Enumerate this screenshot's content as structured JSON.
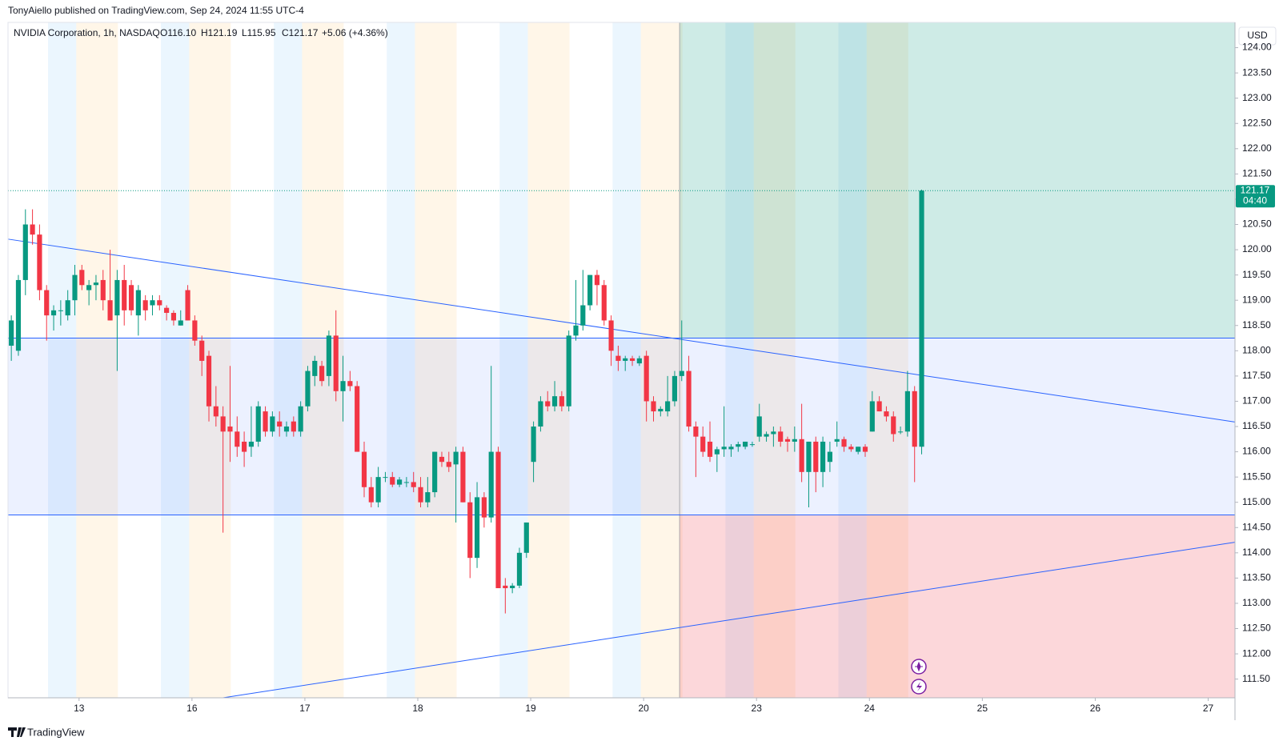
{
  "header": {
    "byline": "TonyAiello published on TradingView.com, Sep 24, 2024 11:55 UTC-4",
    "symbol": "NVIDIA Corporation, 1h, NASDAQ",
    "open": "O116.10",
    "high": "H121.19",
    "low": "L115.95",
    "close": "C121.17",
    "change": "+5.06 (+4.36%)",
    "currency": "USD"
  },
  "footer": {
    "brand": "TradingView"
  },
  "chart_data": {
    "type": "candlestick",
    "up_color": "#089981",
    "down_color": "#f23645",
    "open": [
      118.1,
      118.0,
      119.4,
      120.5,
      120.3,
      119.2,
      118.7,
      118.8,
      118.7,
      119.0,
      119.6,
      119.2,
      119.3,
      119.4,
      119.0,
      118.7,
      119.4,
      119.3,
      118.7,
      119.0,
      118.9,
      119.0,
      118.85,
      118.75,
      118.5,
      119.2,
      118.6,
      118.2,
      117.9,
      116.9,
      116.7,
      116.5,
      116.4,
      116.2,
      116.1,
      116.2,
      116.8,
      116.4,
      116.6,
      116.4,
      116.6,
      116.4,
      116.9,
      117.5,
      117.7,
      117.5,
      118.3,
      117.2,
      117.4,
      117.3,
      116.0,
      115.3,
      115.0,
      115.5,
      115.5,
      115.35,
      115.4,
      115.4,
      115.3,
      115.0,
      115.2,
      115.9,
      115.8,
      115.75,
      116.0,
      115.0,
      113.9,
      115.1,
      114.7,
      116.0,
      113.35,
      113.3,
      113.35,
      114.0,
      115.8,
      116.5,
      117.0,
      116.9,
      117.1,
      116.9,
      118.3,
      118.5,
      118.9,
      119.5,
      119.3,
      118.6,
      117.9,
      117.8,
      117.85,
      117.75,
      117.9,
      117.0,
      116.8,
      116.8,
      117.0,
      117.5,
      117.6,
      116.5,
      116.3,
      116.2,
      115.95,
      116.05,
      116.05,
      116.1,
      116.1,
      116.15,
      116.3,
      116.3,
      116.35,
      116.4,
      116.25,
      116.2,
      116.25,
      115.6,
      116.2,
      115.6,
      115.8,
      116.2,
      116.25,
      116.1,
      116.0,
      116.1,
      116.4,
      117.0,
      116.8,
      116.7,
      116.4,
      116.4,
      117.2,
      116.1
    ],
    "high": [
      118.7,
      119.5,
      120.8,
      120.8,
      120.5,
      119.3,
      118.9,
      119.0,
      119.2,
      119.7,
      119.7,
      119.4,
      119.5,
      119.6,
      120.0,
      119.6,
      119.7,
      119.4,
      119.3,
      119.1,
      119.1,
      119.1,
      118.9,
      118.8,
      118.8,
      119.3,
      118.7,
      118.3,
      118.0,
      117.3,
      116.9,
      117.7,
      116.7,
      116.4,
      116.9,
      117.0,
      116.9,
      116.8,
      116.8,
      116.6,
      116.7,
      117.0,
      117.7,
      117.9,
      117.8,
      118.4,
      118.8,
      117.9,
      117.6,
      117.4,
      116.2,
      115.5,
      115.7,
      115.6,
      115.6,
      115.5,
      115.5,
      115.6,
      115.5,
      115.5,
      116.0,
      116.0,
      116.0,
      116.1,
      116.1,
      115.2,
      115.4,
      115.2,
      117.7,
      116.1,
      113.5,
      113.4,
      114.1,
      114.6,
      116.6,
      117.1,
      117.2,
      117.4,
      117.2,
      118.4,
      119.4,
      119.6,
      119.5,
      119.6,
      119.4,
      118.7,
      118.1,
      117.9,
      117.9,
      117.9,
      118.0,
      117.1,
      116.9,
      117.5,
      117.6,
      118.6,
      117.9,
      116.6,
      116.5,
      116.6,
      116.1,
      116.9,
      116.15,
      116.2,
      116.2,
      116.2,
      116.95,
      116.4,
      116.5,
      116.5,
      116.3,
      116.5,
      116.95,
      116.2,
      116.3,
      116.3,
      116.2,
      116.6,
      116.3,
      116.15,
      116.1,
      116.15,
      117.2,
      117.1,
      116.9,
      116.8,
      116.5,
      117.6,
      117.3,
      121.19
    ],
    "low": [
      117.8,
      117.9,
      119.1,
      120.1,
      119.0,
      118.2,
      118.4,
      118.5,
      118.6,
      118.7,
      119.2,
      118.9,
      119.0,
      118.8,
      118.6,
      117.6,
      118.5,
      118.7,
      118.3,
      118.6,
      118.7,
      118.8,
      118.6,
      118.5,
      118.5,
      118.6,
      118.1,
      117.5,
      116.6,
      116.5,
      114.4,
      115.8,
      115.9,
      115.7,
      115.9,
      116.1,
      116.3,
      116.3,
      116.3,
      116.3,
      116.3,
      116.3,
      116.8,
      117.3,
      117.3,
      117.3,
      117.0,
      116.6,
      117.2,
      116.0,
      115.1,
      114.9,
      114.9,
      115.4,
      115.3,
      115.3,
      115.3,
      115.2,
      114.9,
      114.9,
      115.1,
      115.7,
      115.6,
      114.6,
      115.0,
      113.5,
      113.7,
      114.5,
      114.6,
      113.3,
      112.8,
      113.2,
      113.3,
      113.9,
      115.4,
      116.4,
      116.8,
      116.8,
      116.8,
      116.8,
      118.2,
      118.4,
      118.8,
      118.9,
      118.5,
      117.7,
      117.6,
      117.6,
      117.7,
      117.7,
      116.6,
      116.6,
      116.7,
      116.7,
      116.9,
      117.4,
      116.4,
      115.5,
      115.9,
      115.8,
      115.6,
      115.9,
      115.9,
      116.0,
      116.05,
      116.1,
      116.2,
      116.2,
      116.1,
      116.1,
      116.0,
      116.0,
      115.4,
      114.9,
      115.2,
      115.3,
      115.6,
      116.1,
      116.0,
      116.0,
      115.95,
      115.9,
      116.4,
      116.8,
      116.6,
      116.2,
      116.35,
      116.3,
      115.4,
      115.95
    ],
    "close": [
      118.6,
      119.4,
      120.5,
      120.3,
      119.2,
      118.7,
      118.8,
      118.8,
      119.0,
      119.5,
      119.3,
      119.3,
      119.35,
      119.0,
      118.6,
      119.4,
      118.8,
      118.8,
      119.2,
      118.8,
      119.0,
      118.9,
      118.75,
      118.6,
      118.6,
      118.6,
      118.2,
      117.8,
      116.9,
      116.7,
      116.4,
      116.4,
      116.1,
      116.0,
      116.2,
      116.9,
      116.4,
      116.7,
      116.5,
      116.5,
      116.4,
      116.9,
      117.6,
      117.8,
      117.4,
      118.3,
      117.2,
      117.4,
      117.3,
      116.0,
      115.3,
      115.0,
      115.5,
      115.5,
      115.35,
      115.45,
      115.4,
      115.3,
      115.0,
      115.2,
      116.0,
      115.8,
      115.7,
      116.0,
      115.0,
      113.9,
      115.1,
      114.7,
      116.0,
      113.3,
      113.3,
      113.35,
      114.0,
      114.6,
      116.5,
      117.0,
      116.9,
      117.1,
      116.9,
      118.3,
      118.5,
      118.9,
      119.5,
      119.3,
      118.6,
      118.0,
      117.8,
      117.85,
      117.8,
      117.85,
      117.0,
      116.8,
      116.85,
      117.0,
      117.5,
      117.6,
      116.5,
      116.3,
      116.0,
      115.9,
      116.05,
      116.1,
      116.1,
      116.15,
      116.2,
      116.15,
      116.7,
      116.35,
      116.4,
      116.2,
      116.2,
      116.25,
      115.6,
      116.2,
      115.6,
      116.2,
      116.0,
      116.25,
      116.1,
      116.05,
      116.1,
      116.0,
      117.0,
      116.8,
      116.7,
      116.35,
      116.4,
      117.2,
      116.1,
      121.17
    ],
    "xlim": [
      -0.47,
      173.4
    ],
    "xticks": [
      {
        "value": 9.6,
        "label": "13"
      },
      {
        "value": 25.6,
        "label": "16"
      },
      {
        "value": 41.6,
        "label": "17"
      },
      {
        "value": 57.6,
        "label": "18"
      },
      {
        "value": 73.6,
        "label": "19"
      },
      {
        "value": 89.6,
        "label": "20"
      },
      {
        "value": 105.6,
        "label": "23"
      },
      {
        "value": 121.6,
        "label": "24"
      },
      {
        "value": 137.6,
        "label": "25"
      },
      {
        "value": 153.6,
        "label": "26"
      },
      {
        "value": 169.6,
        "label": "27"
      }
    ],
    "ylim": [
      111.13,
      124.5
    ],
    "yticks": [
      {
        "value": 111.5,
        "label": "111.50"
      },
      {
        "value": 112,
        "label": "112.00"
      },
      {
        "value": 112.5,
        "label": "112.50"
      },
      {
        "value": 113,
        "label": "113.00"
      },
      {
        "value": 113.5,
        "label": "113.50"
      },
      {
        "value": 114,
        "label": "114.00"
      },
      {
        "value": 114.5,
        "label": "114.50"
      },
      {
        "value": 115,
        "label": "115.00"
      },
      {
        "value": 115.5,
        "label": "115.50"
      },
      {
        "value": 116,
        "label": "116.00"
      },
      {
        "value": 116.5,
        "label": "116.50"
      },
      {
        "value": 117,
        "label": "117.00"
      },
      {
        "value": 117.5,
        "label": "117.50"
      },
      {
        "value": 118,
        "label": "118.00"
      },
      {
        "value": 118.5,
        "label": "118.50"
      },
      {
        "value": 119,
        "label": "119.00"
      },
      {
        "value": 119.5,
        "label": "119.50"
      },
      {
        "value": 120,
        "label": "120.00"
      },
      {
        "value": 120.5,
        "label": "120.50"
      },
      {
        "value": 121,
        "label": "121.00"
      },
      {
        "value": 121.5,
        "label": "121.50"
      },
      {
        "value": 122,
        "label": "122.00"
      },
      {
        "value": 122.5,
        "label": "122.50"
      },
      {
        "value": 123,
        "label": "123.00"
      },
      {
        "value": 123.5,
        "label": "123.50"
      },
      {
        "value": 124,
        "label": "124.00"
      }
    ],
    "trendlines": [
      {
        "x": [
          -0.47,
          173.4
        ],
        "y": [
          120.21,
          116.59
        ],
        "color": "#2962ff"
      },
      {
        "x": [
          30,
          173.4
        ],
        "y": [
          111.13,
          114.21
        ],
        "color": "#2962ff"
      }
    ],
    "range_box": {
      "top": 118.25,
      "bottom": 114.75,
      "color": "#2962ff"
    },
    "position": {
      "start": 94.7
    },
    "last_price": 121.17,
    "last_price_label": "121.17",
    "countdown": "04:40"
  }
}
